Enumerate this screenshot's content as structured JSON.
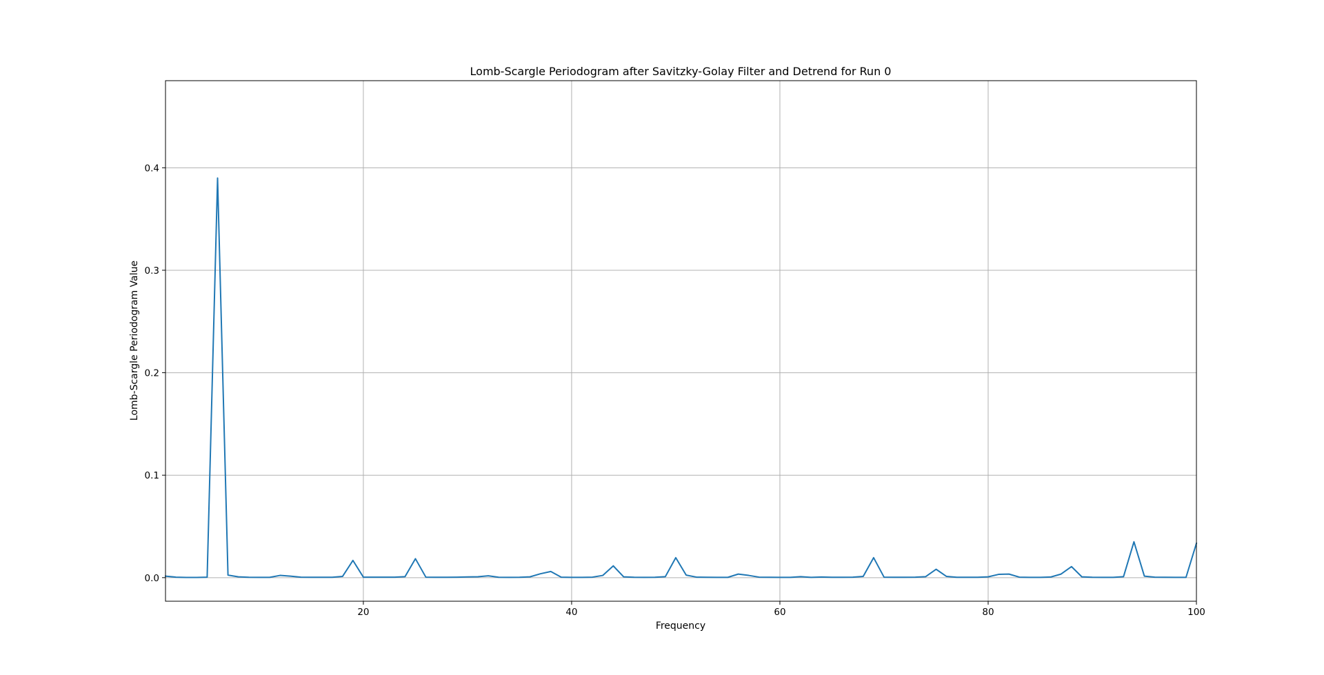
{
  "chart_data": {
    "type": "line",
    "title": "Lomb-Scargle Periodogram after Savitzky-Golay Filter and Detrend for Run 0",
    "xlabel": "Frequency",
    "ylabel": "Lomb-Scargle Periodogram Value",
    "xlim": [
      1,
      100
    ],
    "ylim": [
      -0.023,
      0.485
    ],
    "xticks": [
      20,
      40,
      60,
      80,
      100
    ],
    "xtick_labels": [
      "20",
      "40",
      "60",
      "80",
      "100"
    ],
    "yticks": [
      0.0,
      0.1,
      0.2,
      0.3,
      0.4
    ],
    "ytick_labels": [
      "0.0",
      "0.1",
      "0.2",
      "0.3",
      "0.4"
    ],
    "grid": true,
    "legend": "none",
    "series": [
      {
        "color": "#1f77b4",
        "x": [
          1,
          2,
          3,
          4,
          5,
          6,
          7,
          8,
          9,
          10,
          11,
          12,
          13,
          14,
          15,
          16,
          17,
          18,
          19,
          20,
          21,
          22,
          23,
          24,
          25,
          26,
          27,
          28,
          29,
          30,
          31,
          32,
          33,
          34,
          35,
          36,
          37,
          38,
          39,
          40,
          41,
          42,
          43,
          44,
          45,
          46,
          47,
          48,
          49,
          50,
          51,
          52,
          53,
          54,
          55,
          56,
          57,
          58,
          59,
          60,
          61,
          62,
          63,
          64,
          65,
          66,
          67,
          68,
          69,
          70,
          71,
          72,
          73,
          74,
          75,
          76,
          77,
          78,
          79,
          80,
          81,
          82,
          83,
          84,
          85,
          86,
          87,
          88,
          89,
          90,
          91,
          92,
          93,
          94,
          95,
          96,
          97,
          98,
          99,
          100
        ],
        "y": [
          0.0015,
          0.0005,
          0.0002,
          0.0002,
          0.0005,
          0.39,
          0.0025,
          0.0008,
          0.0004,
          0.0003,
          0.0003,
          0.0022,
          0.0015,
          0.0005,
          0.0004,
          0.0004,
          0.0004,
          0.0012,
          0.0168,
          0.0005,
          0.0005,
          0.0005,
          0.0005,
          0.001,
          0.0185,
          0.0005,
          0.0004,
          0.0004,
          0.0005,
          0.0007,
          0.0009,
          0.0018,
          0.0004,
          0.0003,
          0.0004,
          0.0008,
          0.0038,
          0.006,
          0.0005,
          0.0003,
          0.0003,
          0.0005,
          0.0022,
          0.0115,
          0.0008,
          0.0004,
          0.0003,
          0.0004,
          0.001,
          0.0195,
          0.0025,
          0.0005,
          0.0004,
          0.0003,
          0.0003,
          0.0035,
          0.0022,
          0.0005,
          0.0004,
          0.0003,
          0.0003,
          0.001,
          0.0003,
          0.0006,
          0.0004,
          0.0004,
          0.0005,
          0.0012,
          0.0195,
          0.0005,
          0.0004,
          0.0004,
          0.0005,
          0.001,
          0.0082,
          0.0012,
          0.0004,
          0.0004,
          0.0004,
          0.0008,
          0.0032,
          0.0035,
          0.0005,
          0.0003,
          0.0003,
          0.0006,
          0.0035,
          0.0108,
          0.0008,
          0.0004,
          0.0003,
          0.0003,
          0.001,
          0.035,
          0.0015,
          0.0005,
          0.0004,
          0.0003,
          0.0003,
          0.0335
        ]
      }
    ]
  }
}
